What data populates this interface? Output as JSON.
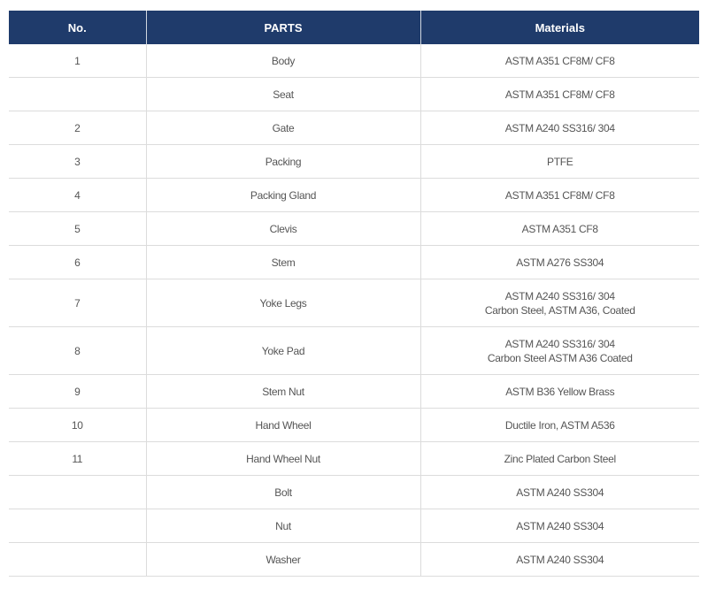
{
  "headers": {
    "no": "No.",
    "parts": "PARTS",
    "materials": "Materials"
  },
  "rows": [
    {
      "no": "1",
      "part": "Body",
      "material": [
        "ASTM A351 CF8M/ CF8"
      ]
    },
    {
      "no": "",
      "part": "Seat",
      "material": [
        "ASTM A351 CF8M/ CF8"
      ]
    },
    {
      "no": "2",
      "part": "Gate",
      "material": [
        "ASTM A240 SS316/ 304"
      ]
    },
    {
      "no": "3",
      "part": "Packing",
      "material": [
        "PTFE"
      ]
    },
    {
      "no": "4",
      "part": "Packing Gland",
      "material": [
        "ASTM A351 CF8M/ CF8"
      ]
    },
    {
      "no": "5",
      "part": "Clevis",
      "material": [
        "ASTM A351 CF8"
      ]
    },
    {
      "no": "6",
      "part": "Stem",
      "material": [
        "ASTM A276 SS304"
      ]
    },
    {
      "no": "7",
      "part": "Yoke Legs",
      "material": [
        "ASTM A240 SS316/ 304",
        "Carbon Steel, ASTM A36, Coated"
      ]
    },
    {
      "no": "8",
      "part": "Yoke Pad",
      "material": [
        "ASTM A240 SS316/ 304",
        "Carbon Steel ASTM A36  Coated"
      ]
    },
    {
      "no": "9",
      "part": "Stem Nut",
      "material": [
        "ASTM B36 Yellow Brass"
      ]
    },
    {
      "no": "10",
      "part": "Hand Wheel",
      "material": [
        "Ductile Iron, ASTM A536"
      ]
    },
    {
      "no": "11",
      "part": "Hand Wheel Nut",
      "material": [
        "Zinc Plated Carbon Steel"
      ]
    },
    {
      "no": "",
      "part": "Bolt",
      "material": [
        "ASTM A240 SS304"
      ]
    },
    {
      "no": "",
      "part": "Nut",
      "material": [
        "ASTM A240 SS304"
      ]
    },
    {
      "no": "",
      "part": "Washer",
      "material": [
        "ASTM A240 SS304"
      ]
    }
  ],
  "colors": {
    "header_bg": "#1f3b6b",
    "text": "#555555"
  }
}
